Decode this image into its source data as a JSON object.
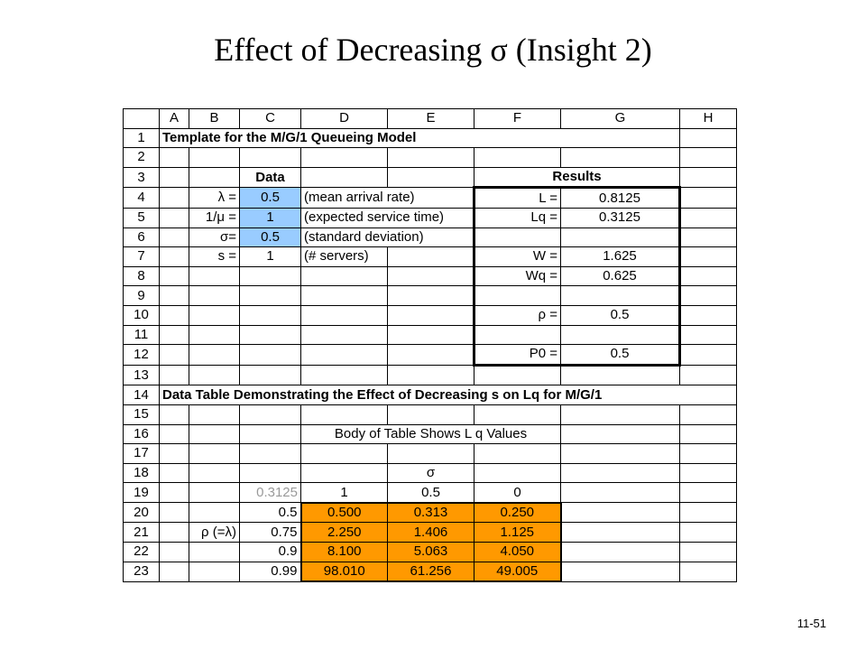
{
  "slide": {
    "title": "Effect of Decreasing  σ  (Insight 2)",
    "number": "11-51"
  },
  "sheet": {
    "columns": [
      "A",
      "B",
      "C",
      "D",
      "E",
      "F",
      "G",
      "H"
    ],
    "row_numbers": [
      "1",
      "2",
      "3",
      "4",
      "5",
      "6",
      "7",
      "8",
      "9",
      "10",
      "11",
      "12",
      "13",
      "14",
      "15",
      "16",
      "17",
      "18",
      "19",
      "20",
      "21",
      "22",
      "23"
    ],
    "title": "Template for the M/G/1 Queueing Model",
    "data_header": "Data",
    "results_header": "Results",
    "inputs": [
      {
        "label": "λ =",
        "value": "0.5",
        "note": "(mean arrival rate)"
      },
      {
        "label": "1/μ =",
        "value": "1",
        "note": "(expected service time)"
      },
      {
        "label": "σ=",
        "value": "0.5",
        "note": "(standard deviation)"
      },
      {
        "label": "s =",
        "value": "1",
        "note": "(# servers)"
      }
    ],
    "results": [
      {
        "label": "L =",
        "value": "0.8125"
      },
      {
        "label": "Lq =",
        "value": "0.3125"
      },
      {
        "label": "W =",
        "value": "1.625"
      },
      {
        "label": "Wq =",
        "value": "0.625"
      },
      {
        "label": "ρ =",
        "value": "0.5"
      },
      {
        "label": "P0 =",
        "value": "0.5"
      }
    ],
    "data_table_title": "Data Table Demonstrating the Effect of Decreasing s on Lq for M/G/1",
    "body_caption": "Body of Table Shows L q Values",
    "sigma_label": "σ",
    "corner_value": "0.3125",
    "sigma_values": [
      "1",
      "0.5",
      "0"
    ],
    "rho_label": "ρ (=λ)",
    "rho_values": [
      "0.5",
      "0.75",
      "0.9",
      "0.99"
    ],
    "body": [
      [
        "0.500",
        "0.313",
        "0.250"
      ],
      [
        "2.250",
        "1.406",
        "1.125"
      ],
      [
        "8.100",
        "5.063",
        "4.050"
      ],
      [
        "98.010",
        "61.256",
        "49.005"
      ]
    ]
  }
}
